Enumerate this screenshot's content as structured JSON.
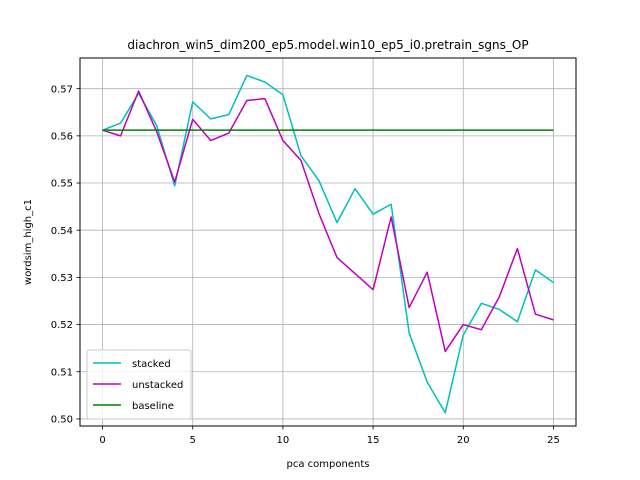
{
  "chart_data": {
    "type": "line",
    "title": "diachron_win5_dim200_ep5.model.win10_ep5_i0.pretrain_sgns_OP",
    "xlabel": "pca components",
    "ylabel": "wordsim_high_c1",
    "xlim": [
      -1.25,
      26.25
    ],
    "ylim": [
      0.4985,
      0.5765
    ],
    "xticks": [
      0,
      5,
      10,
      15,
      20,
      25
    ],
    "yticks": [
      0.5,
      0.51,
      0.52,
      0.53,
      0.54,
      0.55,
      0.56,
      0.57
    ],
    "grid": true,
    "legend_position": "lower-left",
    "x": [
      0,
      1,
      2,
      3,
      4,
      5,
      6,
      7,
      8,
      9,
      10,
      11,
      12,
      13,
      14,
      15,
      16,
      17,
      18,
      19,
      20,
      21,
      22,
      23,
      24,
      25
    ],
    "series": [
      {
        "name": "stacked",
        "color": "#00bfbf",
        "values": [
          0.5612,
          0.5627,
          0.569,
          0.5622,
          0.5494,
          0.5672,
          0.5636,
          0.5645,
          0.5728,
          0.5714,
          0.5687,
          0.5558,
          0.5505,
          0.5416,
          0.5488,
          0.5434,
          0.5455,
          0.5182,
          0.5078,
          0.5013,
          0.5178,
          0.5245,
          0.5232,
          0.5206,
          0.5316,
          0.5289
        ]
      },
      {
        "name": "unstacked",
        "color": "#bf00bf",
        "values": [
          0.5612,
          0.56,
          0.5695,
          0.5609,
          0.5502,
          0.5635,
          0.559,
          0.5606,
          0.5675,
          0.5679,
          0.559,
          0.5548,
          0.5435,
          0.5342,
          0.5308,
          0.5274,
          0.5428,
          0.5236,
          0.5311,
          0.5143,
          0.52,
          0.5189,
          0.5259,
          0.5361,
          0.5222,
          0.521
        ]
      },
      {
        "name": "baseline",
        "color": "#008000",
        "values": [
          0.5612,
          0.5612,
          0.5612,
          0.5612,
          0.5612,
          0.5612,
          0.5612,
          0.5612,
          0.5612,
          0.5612,
          0.5612,
          0.5612,
          0.5612,
          0.5612,
          0.5612,
          0.5612,
          0.5612,
          0.5612,
          0.5612,
          0.5612,
          0.5612,
          0.5612,
          0.5612,
          0.5612,
          0.5612,
          0.5612
        ]
      }
    ]
  }
}
